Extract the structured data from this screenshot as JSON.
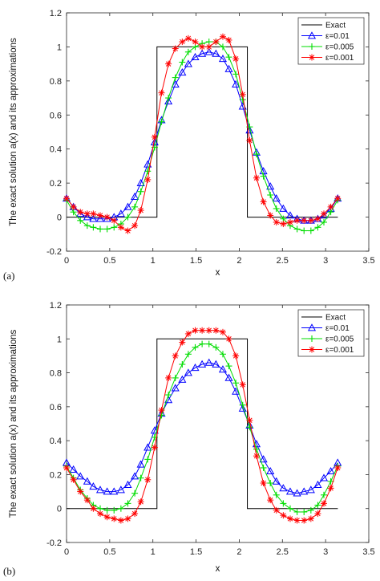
{
  "chart_data": [
    {
      "type": "line",
      "panel_label": "(a)",
      "xlabel": "x",
      "ylabel": "The exact solution a(x) and its approximations",
      "xlim": [
        0,
        3.5
      ],
      "ylim": [
        -0.2,
        1.2
      ],
      "xticks": [
        "0",
        "0.5",
        "1",
        "1.5",
        "2",
        "2.5",
        "3",
        "3.5"
      ],
      "yticks": [
        "-0.2",
        "0",
        "0.2",
        "0.4",
        "0.6",
        "0.8",
        "1",
        "1.2"
      ],
      "legend_position": "top-right",
      "grid": false,
      "series": [
        {
          "name": "Exact",
          "color": "#000000",
          "marker": "none",
          "x": [
            0,
            1.047,
            1.047,
            2.094,
            2.094,
            3.1416
          ],
          "y": [
            0,
            0,
            1,
            1,
            0,
            0
          ]
        },
        {
          "name": "ε=0.01",
          "color": "#0000ff",
          "marker": "triangle",
          "x": [
            0,
            0.08,
            0.16,
            0.24,
            0.31,
            0.39,
            0.47,
            0.55,
            0.63,
            0.71,
            0.79,
            0.86,
            0.94,
            1.02,
            1.1,
            1.18,
            1.26,
            1.34,
            1.41,
            1.49,
            1.57,
            1.65,
            1.73,
            1.81,
            1.88,
            1.96,
            2.04,
            2.12,
            2.2,
            2.28,
            2.36,
            2.43,
            2.51,
            2.59,
            2.67,
            2.75,
            2.83,
            2.91,
            2.98,
            3.06,
            3.14
          ],
          "y": [
            0.11,
            0.06,
            0.02,
            0.0,
            -0.01,
            -0.01,
            -0.01,
            0.0,
            0.02,
            0.06,
            0.12,
            0.2,
            0.31,
            0.44,
            0.57,
            0.68,
            0.78,
            0.85,
            0.9,
            0.94,
            0.96,
            0.97,
            0.96,
            0.93,
            0.87,
            0.78,
            0.65,
            0.51,
            0.38,
            0.27,
            0.18,
            0.11,
            0.05,
            0.01,
            -0.01,
            -0.02,
            -0.02,
            -0.01,
            0.01,
            0.05,
            0.11
          ]
        },
        {
          "name": "ε=0.005",
          "color": "#00dd00",
          "marker": "plus",
          "x": [
            0,
            0.08,
            0.16,
            0.24,
            0.31,
            0.39,
            0.47,
            0.55,
            0.63,
            0.71,
            0.79,
            0.86,
            0.94,
            1.02,
            1.1,
            1.18,
            1.26,
            1.34,
            1.41,
            1.49,
            1.57,
            1.65,
            1.73,
            1.81,
            1.88,
            1.96,
            2.04,
            2.12,
            2.2,
            2.28,
            2.36,
            2.43,
            2.51,
            2.59,
            2.67,
            2.75,
            2.83,
            2.91,
            2.98,
            3.06,
            3.14
          ],
          "y": [
            0.1,
            0.03,
            -0.02,
            -0.05,
            -0.06,
            -0.07,
            -0.07,
            -0.06,
            -0.04,
            0.0,
            0.06,
            0.15,
            0.27,
            0.41,
            0.56,
            0.7,
            0.82,
            0.91,
            0.97,
            1.0,
            1.02,
            1.03,
            1.03,
            1.0,
            0.94,
            0.84,
            0.69,
            0.53,
            0.37,
            0.24,
            0.13,
            0.05,
            -0.01,
            -0.05,
            -0.07,
            -0.08,
            -0.08,
            -0.06,
            -0.03,
            0.03,
            0.1
          ]
        },
        {
          "name": "ε=0.001",
          "color": "#ff0000",
          "marker": "asterisk",
          "x": [
            0,
            0.08,
            0.16,
            0.24,
            0.31,
            0.39,
            0.47,
            0.55,
            0.63,
            0.71,
            0.79,
            0.86,
            0.94,
            1.02,
            1.1,
            1.18,
            1.26,
            1.34,
            1.41,
            1.49,
            1.57,
            1.65,
            1.73,
            1.81,
            1.88,
            1.96,
            2.04,
            2.12,
            2.2,
            2.28,
            2.36,
            2.43,
            2.51,
            2.59,
            2.67,
            2.75,
            2.83,
            2.91,
            2.98,
            3.06,
            3.14
          ],
          "y": [
            0.11,
            0.06,
            0.03,
            0.02,
            0.02,
            0.01,
            0.0,
            -0.02,
            -0.06,
            -0.08,
            -0.05,
            0.04,
            0.22,
            0.47,
            0.73,
            0.9,
            0.99,
            1.03,
            1.05,
            1.03,
            1.0,
            1.0,
            1.03,
            1.06,
            1.04,
            0.93,
            0.72,
            0.45,
            0.23,
            0.09,
            0.01,
            -0.03,
            -0.04,
            -0.03,
            -0.02,
            -0.02,
            -0.02,
            -0.01,
            0.02,
            0.06,
            0.11
          ]
        }
      ]
    },
    {
      "type": "line",
      "panel_label": "(b)",
      "xlabel": "x",
      "ylabel": "The exact solution a(x) and its approximations",
      "xlim": [
        0,
        3.5
      ],
      "ylim": [
        -0.2,
        1.2
      ],
      "xticks": [
        "0",
        "0.5",
        "1",
        "1.5",
        "2",
        "2.5",
        "3",
        "3.5"
      ],
      "yticks": [
        "-0.2",
        "0",
        "0.2",
        "0.4",
        "0.6",
        "0.8",
        "1",
        "1.2"
      ],
      "legend_position": "top-right",
      "grid": false,
      "series": [
        {
          "name": "Exact",
          "color": "#000000",
          "marker": "none",
          "x": [
            0,
            1.047,
            1.047,
            2.094,
            2.094,
            3.1416
          ],
          "y": [
            0,
            0,
            1,
            1,
            0,
            0
          ]
        },
        {
          "name": "ε=0.01",
          "color": "#0000ff",
          "marker": "triangle",
          "x": [
            0,
            0.08,
            0.16,
            0.24,
            0.31,
            0.39,
            0.47,
            0.55,
            0.63,
            0.71,
            0.79,
            0.86,
            0.94,
            1.02,
            1.1,
            1.18,
            1.26,
            1.34,
            1.41,
            1.49,
            1.57,
            1.65,
            1.73,
            1.81,
            1.88,
            1.96,
            2.04,
            2.12,
            2.2,
            2.28,
            2.36,
            2.43,
            2.51,
            2.59,
            2.67,
            2.75,
            2.83,
            2.91,
            2.98,
            3.06,
            3.14
          ],
          "y": [
            0.27,
            0.23,
            0.19,
            0.16,
            0.13,
            0.11,
            0.1,
            0.1,
            0.11,
            0.14,
            0.19,
            0.26,
            0.36,
            0.46,
            0.56,
            0.64,
            0.71,
            0.76,
            0.8,
            0.83,
            0.85,
            0.86,
            0.85,
            0.82,
            0.77,
            0.69,
            0.59,
            0.49,
            0.38,
            0.29,
            0.22,
            0.16,
            0.12,
            0.1,
            0.09,
            0.1,
            0.11,
            0.14,
            0.18,
            0.22,
            0.27
          ]
        },
        {
          "name": "ε=0.005",
          "color": "#00dd00",
          "marker": "plus",
          "x": [
            0,
            0.08,
            0.16,
            0.24,
            0.31,
            0.39,
            0.47,
            0.55,
            0.63,
            0.71,
            0.79,
            0.86,
            0.94,
            1.02,
            1.1,
            1.18,
            1.26,
            1.34,
            1.41,
            1.49,
            1.57,
            1.65,
            1.73,
            1.81,
            1.88,
            1.96,
            2.04,
            2.12,
            2.2,
            2.28,
            2.36,
            2.43,
            2.51,
            2.59,
            2.67,
            2.75,
            2.83,
            2.91,
            2.98,
            3.06,
            3.14
          ],
          "y": [
            0.25,
            0.18,
            0.11,
            0.06,
            0.02,
            0.0,
            -0.01,
            -0.01,
            0.0,
            0.03,
            0.09,
            0.18,
            0.29,
            0.42,
            0.55,
            0.67,
            0.77,
            0.85,
            0.91,
            0.95,
            0.97,
            0.97,
            0.95,
            0.91,
            0.84,
            0.74,
            0.61,
            0.48,
            0.35,
            0.24,
            0.15,
            0.08,
            0.03,
            0.0,
            -0.02,
            -0.02,
            -0.01,
            0.02,
            0.08,
            0.16,
            0.25
          ]
        },
        {
          "name": "ε=0.001",
          "color": "#ff0000",
          "marker": "asterisk",
          "x": [
            0,
            0.08,
            0.16,
            0.24,
            0.31,
            0.39,
            0.47,
            0.55,
            0.63,
            0.71,
            0.79,
            0.86,
            0.94,
            1.02,
            1.1,
            1.18,
            1.26,
            1.34,
            1.41,
            1.49,
            1.57,
            1.65,
            1.73,
            1.81,
            1.88,
            1.96,
            2.04,
            2.12,
            2.2,
            2.28,
            2.36,
            2.43,
            2.51,
            2.59,
            2.67,
            2.75,
            2.83,
            2.91,
            2.98,
            3.06,
            3.14
          ],
          "y": [
            0.24,
            0.17,
            0.1,
            0.05,
            0.0,
            -0.03,
            -0.05,
            -0.06,
            -0.07,
            -0.06,
            -0.03,
            0.04,
            0.17,
            0.36,
            0.58,
            0.77,
            0.9,
            0.98,
            1.03,
            1.05,
            1.05,
            1.05,
            1.05,
            1.04,
            1.0,
            0.9,
            0.73,
            0.52,
            0.31,
            0.15,
            0.05,
            -0.01,
            -0.04,
            -0.06,
            -0.07,
            -0.07,
            -0.06,
            -0.03,
            0.03,
            0.12,
            0.24
          ]
        }
      ]
    }
  ]
}
